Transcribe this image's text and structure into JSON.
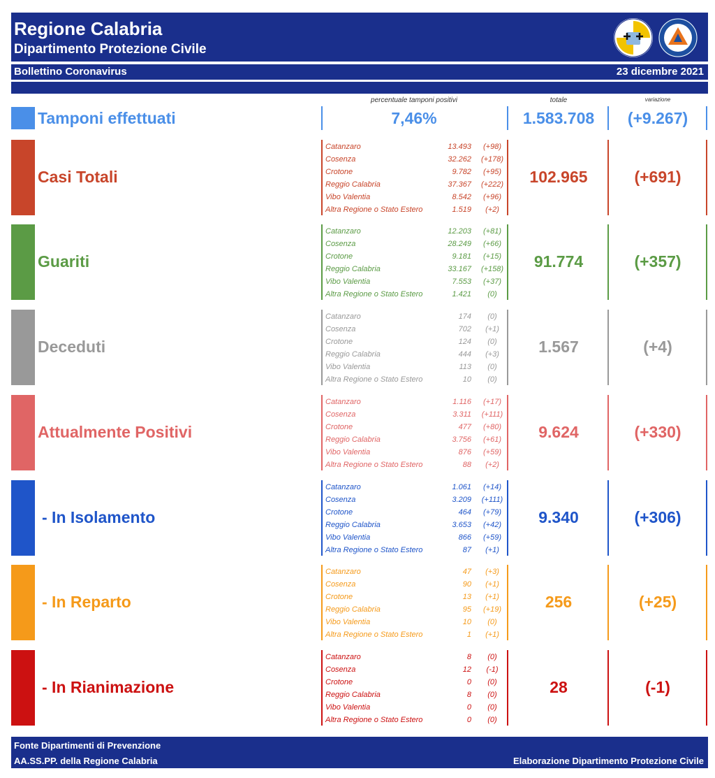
{
  "header": {
    "title": "Regione Calabria",
    "subtitle": "Dipartimento Protezione Civile",
    "bulletin": "Bollettino Coronavirus",
    "date": "23 dicembre 2021",
    "logo1_icon": "regione-calabria-coat-of-arms-icon",
    "logo2_icon": "protezione-civile-logo-icon"
  },
  "columns": {
    "perc_label": "percentuale tamponi positivi",
    "total_label": "totale",
    "variation_label": "variazione"
  },
  "tamponi": {
    "label": "Tamponi effettuati",
    "percent": "7,46%",
    "total": "1.583.708",
    "variation": "(+9.267)",
    "color": "#4a8fe8"
  },
  "sections": [
    {
      "label": "Casi Totali",
      "total": "102.965",
      "variation": "(+691)",
      "color": "#c8452a",
      "rows": [
        {
          "prov": "Catanzaro",
          "value": "13.493",
          "var": "(+98)"
        },
        {
          "prov": "Cosenza",
          "value": "32.262",
          "var": "(+178)"
        },
        {
          "prov": "Crotone",
          "value": "9.782",
          "var": "(+95)"
        },
        {
          "prov": "Reggio Calabria",
          "value": "37.367",
          "var": "(+222)"
        },
        {
          "prov": "Vibo Valentia",
          "value": "8.542",
          "var": "(+96)"
        },
        {
          "prov": "Altra Regione o Stato Estero",
          "value": "1.519",
          "var": "(+2)"
        }
      ]
    },
    {
      "label": "Guariti",
      "total": "91.774",
      "variation": "(+357)",
      "color": "#5b9b45",
      "rows": [
        {
          "prov": "Catanzaro",
          "value": "12.203",
          "var": "(+81)"
        },
        {
          "prov": "Cosenza",
          "value": "28.249",
          "var": "(+66)"
        },
        {
          "prov": "Crotone",
          "value": "9.181",
          "var": "(+15)"
        },
        {
          "prov": "Reggio Calabria",
          "value": "33.167",
          "var": "(+158)"
        },
        {
          "prov": "Vibo Valentia",
          "value": "7.553",
          "var": "(+37)"
        },
        {
          "prov": "Altra Regione o Stato Estero",
          "value": "1.421",
          "var": "(0)"
        }
      ]
    },
    {
      "label": "Deceduti",
      "total": "1.567",
      "variation": "(+4)",
      "color": "#999999",
      "rows": [
        {
          "prov": "Catanzaro",
          "value": "174",
          "var": "(0)"
        },
        {
          "prov": "Cosenza",
          "value": "702",
          "var": "(+1)"
        },
        {
          "prov": "Crotone",
          "value": "124",
          "var": "(0)"
        },
        {
          "prov": "Reggio Calabria",
          "value": "444",
          "var": "(+3)"
        },
        {
          "prov": "Vibo Valentia",
          "value": "113",
          "var": "(0)"
        },
        {
          "prov": "Altra Regione o Stato Estero",
          "value": "10",
          "var": "(0)"
        }
      ]
    },
    {
      "label": "Attualmente Positivi",
      "total": "9.624",
      "variation": "(+330)",
      "color": "#e06565",
      "rows": [
        {
          "prov": "Catanzaro",
          "value": "1.116",
          "var": "(+17)"
        },
        {
          "prov": "Cosenza",
          "value": "3.311",
          "var": "(+111)"
        },
        {
          "prov": "Crotone",
          "value": "477",
          "var": "(+80)"
        },
        {
          "prov": "Reggio Calabria",
          "value": "3.756",
          "var": "(+61)"
        },
        {
          "prov": "Vibo Valentia",
          "value": "876",
          "var": "(+59)"
        },
        {
          "prov": "Altra Regione o Stato Estero",
          "value": "88",
          "var": "(+2)"
        }
      ]
    },
    {
      "label": "- In Isolamento",
      "total": "9.340",
      "variation": "(+306)",
      "color": "#1f55c9",
      "rows": [
        {
          "prov": "Catanzaro",
          "value": "1.061",
          "var": "(+14)"
        },
        {
          "prov": "Cosenza",
          "value": "3.209",
          "var": "(+111)"
        },
        {
          "prov": "Crotone",
          "value": "464",
          "var": "(+79)"
        },
        {
          "prov": "Reggio Calabria",
          "value": "3.653",
          "var": "(+42)"
        },
        {
          "prov": "Vibo Valentia",
          "value": "866",
          "var": "(+59)"
        },
        {
          "prov": "Altra Regione o Stato Estero",
          "value": "87",
          "var": "(+1)"
        }
      ]
    },
    {
      "label": "- In Reparto",
      "total": "256",
      "variation": "(+25)",
      "color": "#f59a1a",
      "rows": [
        {
          "prov": "Catanzaro",
          "value": "47",
          "var": "(+3)"
        },
        {
          "prov": "Cosenza",
          "value": "90",
          "var": "(+1)"
        },
        {
          "prov": "Crotone",
          "value": "13",
          "var": "(+1)"
        },
        {
          "prov": "Reggio Calabria",
          "value": "95",
          "var": "(+19)"
        },
        {
          "prov": "Vibo Valentia",
          "value": "10",
          "var": "(0)"
        },
        {
          "prov": "Altra Regione o Stato Estero",
          "value": "1",
          "var": "(+1)"
        }
      ]
    },
    {
      "label": "- In Rianimazione",
      "total": "28",
      "variation": "(-1)",
      "color": "#cc1111",
      "rows": [
        {
          "prov": "Catanzaro",
          "value": "8",
          "var": "(0)"
        },
        {
          "prov": "Cosenza",
          "value": "12",
          "var": "(-1)"
        },
        {
          "prov": "Crotone",
          "value": "0",
          "var": "(0)"
        },
        {
          "prov": "Reggio Calabria",
          "value": "8",
          "var": "(0)"
        },
        {
          "prov": "Vibo Valentia",
          "value": "0",
          "var": "(0)"
        },
        {
          "prov": "Altra Regione o Stato Estero",
          "value": "0",
          "var": "(0)"
        }
      ]
    }
  ],
  "footer": {
    "source_line1": "Fonte Dipartimenti di Prevenzione",
    "source_line2": "AA.SS.PP.  della Regione Calabria",
    "credit": "Elaborazione Dipartimento Protezione Civile"
  }
}
